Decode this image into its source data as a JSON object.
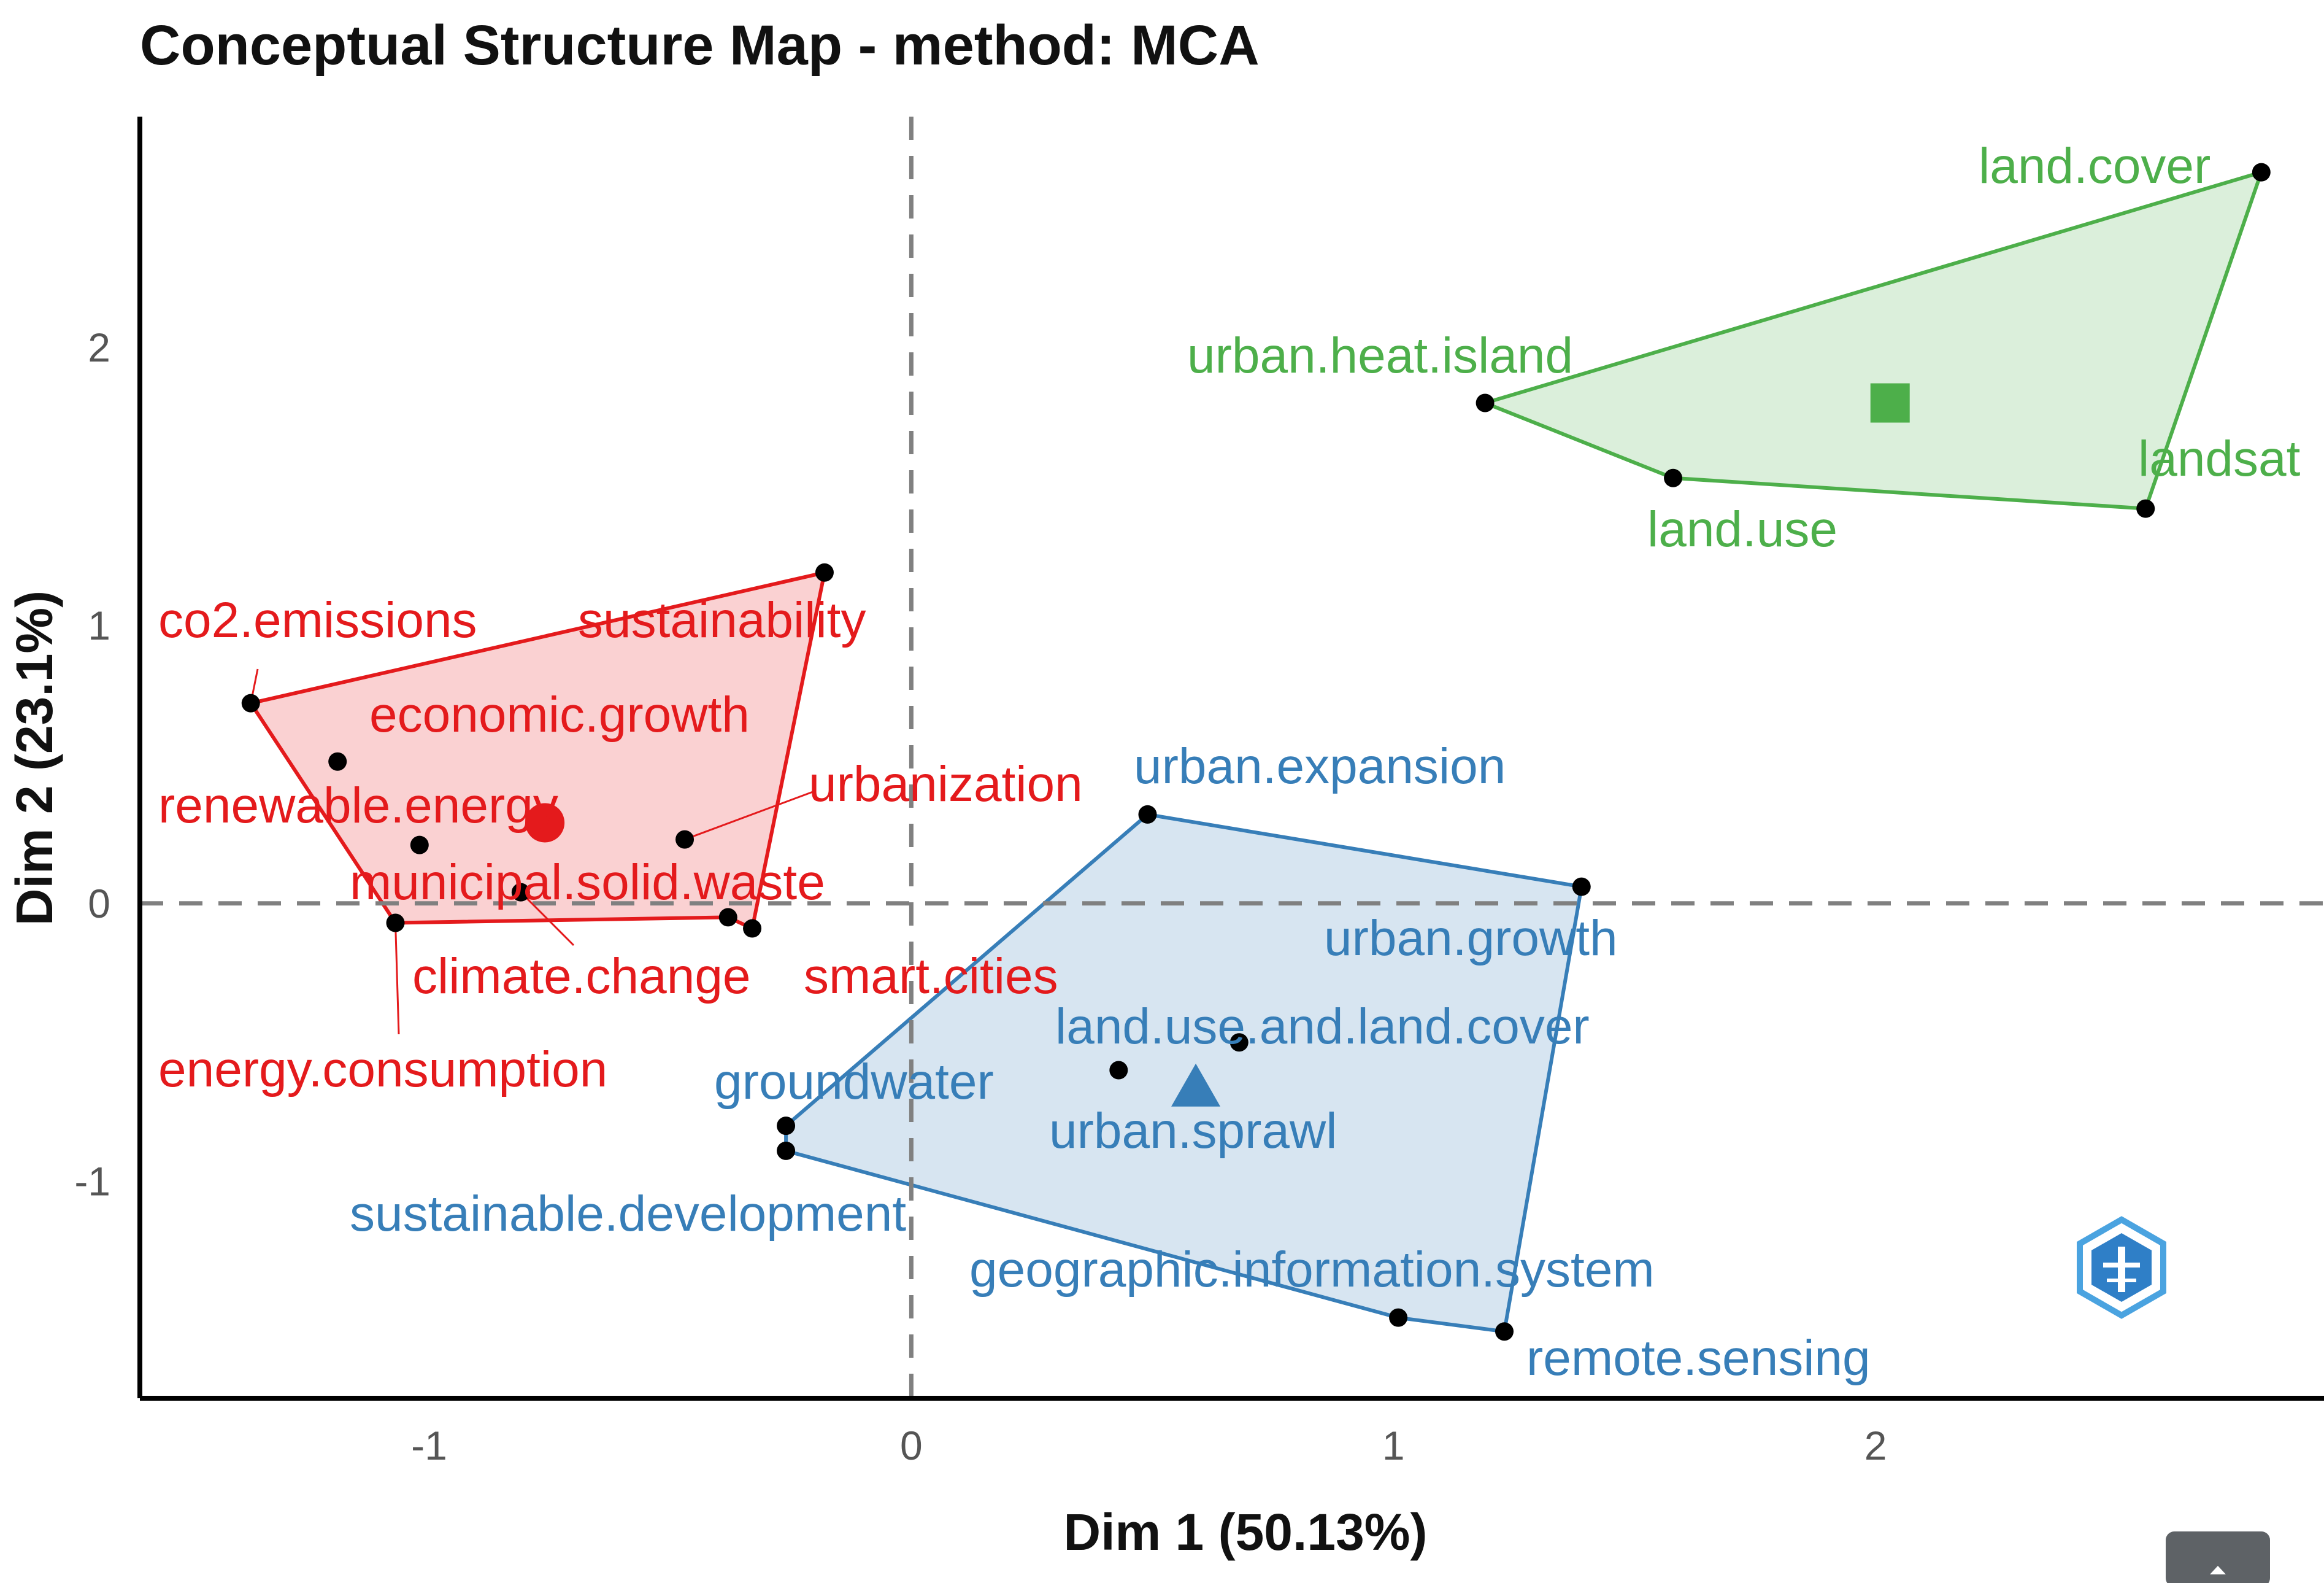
{
  "chart_data": {
    "type": "scatter",
    "title": "Conceptual Structure Map - method: MCA",
    "xlabel": "Dim 1 (50.13%)",
    "ylabel": "Dim 2 (23.1%)",
    "xlim": [
      -1.6,
      2.93
    ],
    "ylim": [
      -1.78,
      2.83
    ],
    "x_ticks": [
      -1,
      0,
      1,
      2
    ],
    "y_ticks": [
      -1,
      0,
      1,
      2
    ],
    "grid": false,
    "reference_lines": {
      "x": 0,
      "y": 0,
      "style": "dashed"
    },
    "clusters": [
      {
        "color": "#e41a1c",
        "centroid": {
          "x": -0.76,
          "y": 0.29,
          "shape": "circle"
        },
        "points": [
          {
            "label": "co2.emissions",
            "x": -1.37,
            "y": 0.72
          },
          {
            "label": "sustainability",
            "x": -0.18,
            "y": 1.19
          },
          {
            "label": "economic.growth",
            "x": -1.19,
            "y": 0.51
          },
          {
            "label": "renewable.energy",
            "x": -1.02,
            "y": 0.21
          },
          {
            "label": "urbanization",
            "x": -0.47,
            "y": 0.23
          },
          {
            "label": "municipal.solid.waste",
            "x": -0.81,
            "y": 0.04
          },
          {
            "label": "climate.change",
            "x": -0.38,
            "y": -0.05
          },
          {
            "label": "smart.cities",
            "x": -0.33,
            "y": -0.09
          },
          {
            "label": "energy.consumption",
            "x": -1.07,
            "y": -0.07
          }
        ],
        "hull": [
          "co2.emissions",
          "sustainability",
          "smart.cities",
          "climate.change",
          "energy.consumption"
        ]
      },
      {
        "color": "#377eb8",
        "centroid": {
          "x": 0.59,
          "y": -0.66,
          "shape": "triangle"
        },
        "points": [
          {
            "label": "urban.expansion",
            "x": 0.49,
            "y": 0.32
          },
          {
            "label": "urban.growth",
            "x": 1.39,
            "y": 0.06
          },
          {
            "label": "land.use.and.land.cover",
            "x": 0.68,
            "y": -0.5
          },
          {
            "label": "urban.sprawl",
            "x": 0.43,
            "y": -0.6
          },
          {
            "label": "groundwater",
            "x": -0.26,
            "y": -0.8
          },
          {
            "label": "sustainable.development",
            "x": -0.26,
            "y": -0.89
          },
          {
            "label": "geographic.information.system",
            "x": 1.01,
            "y": -1.49
          },
          {
            "label": "remote.sensing",
            "x": 1.23,
            "y": -1.54
          }
        ],
        "hull": [
          "urban.expansion",
          "urban.growth",
          "remote.sensing",
          "geographic.information.system",
          "sustainable.development",
          "groundwater"
        ]
      },
      {
        "color": "#4daf4a",
        "centroid": {
          "x": 2.03,
          "y": 1.8,
          "shape": "square"
        },
        "points": [
          {
            "label": "land.cover",
            "x": 2.8,
            "y": 2.63
          },
          {
            "label": "urban.heat.island",
            "x": 1.19,
            "y": 1.8
          },
          {
            "label": "land.use",
            "x": 1.58,
            "y": 1.53
          },
          {
            "label": "landsat",
            "x": 2.56,
            "y": 1.42
          }
        ],
        "hull": [
          "land.cover",
          "landsat",
          "land.use",
          "urban.heat.island"
        ]
      }
    ]
  }
}
